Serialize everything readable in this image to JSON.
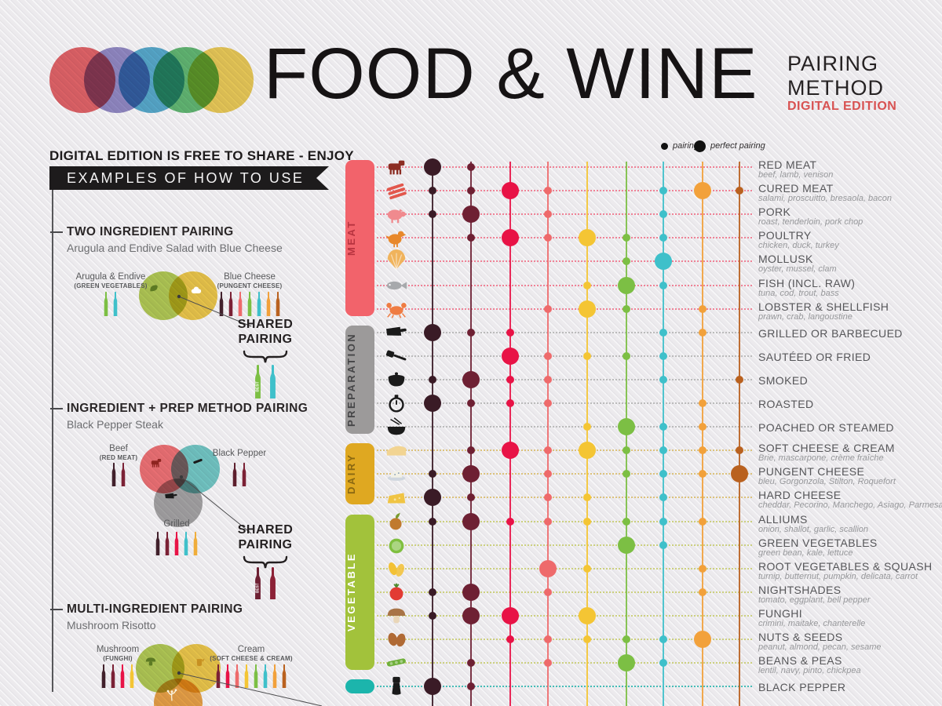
{
  "header": {
    "title": "FOOD & WINE",
    "subtitle_line1": "PAIRING",
    "subtitle_line2": "METHOD",
    "edition": "DIGITAL EDITION",
    "edition_color": "#d85252",
    "logo_colors": [
      "#e04a4f",
      "#8178bc",
      "#3a9dc6",
      "#47ae5b",
      "#e9c43c"
    ]
  },
  "share_note": "DIGITAL EDITION IS FREE TO SHARE - ENJOY",
  "banner": "EXAMPLES OF HOW TO USE",
  "legend": {
    "pairing_label": "pairing",
    "perfect_label": "perfect pairing"
  },
  "examples": [
    {
      "heading": "TWO INGREDIENT PAIRING",
      "subtitle": "Arugula and Endive Salad with Blue Cheese",
      "ingredients": [
        {
          "name": "Arugula & Endive",
          "category": "(GREEN VEGETABLES)",
          "bottles": [
            "#7cbf44",
            "#3fc0ca"
          ]
        },
        {
          "name": "Blue Cheese",
          "category": "(PUNGENT CHEESE)",
          "bottles": [
            "#41202b",
            "#7b2135",
            "#ee6a6b",
            "#7cbf44",
            "#3fc0ca",
            "#f2a13b",
            "#b9611f"
          ]
        }
      ],
      "venn": [
        {
          "color": "#a9c53e",
          "icon": "arugula-icon",
          "icon_color": "#5c7a23"
        },
        {
          "color": "#ecc333",
          "icon": "cloud-icon",
          "icon_color": "#ffffff"
        }
      ],
      "shared_label_line1": "SHARED",
      "shared_label_line2": "PAIRING",
      "shared_bottles": [
        {
          "color": "#7cbf44",
          "tag": "BEST"
        },
        {
          "color": "#3fc0ca",
          "tag": ""
        }
      ]
    },
    {
      "heading": "INGREDIENT + PREP METHOD PAIRING",
      "subtitle": "Black Pepper Steak",
      "ingredients": [
        {
          "name": "Beef",
          "category": "(RED MEAT)",
          "bottles": [
            "#41202b",
            "#7b2135"
          ]
        },
        {
          "name": "Black Pepper",
          "category": "",
          "bottles": [
            "#5d1f2d",
            "#7b2135"
          ]
        },
        {
          "name": "Grilled",
          "category": "",
          "bottles": [
            "#41202b",
            "#7b2135",
            "#e81346",
            "#3fc0ca",
            "#f0ad3a"
          ]
        }
      ],
      "venn": [
        {
          "color": "#ef5f63",
          "icon": "cow-icon",
          "icon_color": "#8e2420"
        },
        {
          "color": "#62c4bf",
          "icon": "pepper-strip-icon",
          "icon_color": "#1a1a1a"
        },
        {
          "color": "#9a9a9a",
          "icon": "cleaver-icon",
          "icon_color": "#1a1a1a"
        }
      ],
      "shared_label_line1": "SHARED",
      "shared_label_line2": "PAIRING",
      "shared_bottles": [
        {
          "color": "#6e2033",
          "tag": "BEST"
        },
        {
          "color": "#8c2136",
          "tag": ""
        }
      ]
    },
    {
      "heading": "MULTI-INGREDIENT PAIRING",
      "subtitle": "Mushroom Risotto",
      "ingredients": [
        {
          "name": "Mushroom",
          "category": "(FUNGHI)",
          "bottles": [
            "#41202b",
            "#7b2135",
            "#e81346",
            "#f4c534"
          ]
        },
        {
          "name": "Cream",
          "category": "(SOFT CHEESE & CREAM)",
          "bottles": [
            "#7b2135",
            "#e81346",
            "#ee6a6b",
            "#f4c534",
            "#7cbf44",
            "#3fc0ca",
            "#f2a13b",
            "#b9611f"
          ]
        }
      ],
      "venn": [
        {
          "color": "#a9c53e",
          "icon": "mushroom-venn-icon",
          "icon_color": "#5c7a23"
        },
        {
          "color": "#ecc333",
          "icon": "pitcher-icon",
          "icon_color": "#c79021"
        },
        {
          "color": "#e8962e",
          "icon": "rice-icon",
          "icon_color": "#faf3df"
        }
      ],
      "shared_label_line1": "",
      "shared_label_line2": "",
      "shared_bottles": []
    }
  ],
  "chart_data": {
    "type": "heatmap",
    "value_legend": {
      "1": "pairing",
      "2": "perfect pairing"
    },
    "wine_columns": [
      "#3a1b26",
      "#6e2033",
      "#e81346",
      "#ee6a6b",
      "#f4c534",
      "#7cbf44",
      "#3fc0ca",
      "#f2a13b",
      "#b9611f"
    ],
    "categories": [
      {
        "label": "MEAT",
        "color": "#f2636b",
        "text_color": "#b7333f",
        "line_color": "#ef8296",
        "row_start": 0,
        "row_end": 6
      },
      {
        "label": "PREPARATION",
        "color": "#9c9a9a",
        "text_color": "#454547",
        "line_color": "#bbbbbb",
        "row_start": 7,
        "row_end": 11
      },
      {
        "label": "DAIRY",
        "color": "#dfa821",
        "text_color": "#8a6812",
        "line_color": "#dcc27c",
        "row_start": 12,
        "row_end": 14
      },
      {
        "label": "VEGETABLE",
        "color": "#a2c23b",
        "text_color": "#ffffff",
        "line_color": "#ccd07f",
        "row_start": 15,
        "row_end": 21
      },
      {
        "label": "",
        "color": "#1cb5ac",
        "text_color": "#ffffff",
        "line_color": "#45bdb7",
        "row_start": 22,
        "row_end": 22
      }
    ],
    "rows": [
      {
        "label": "RED MEAT",
        "sub": "beef, lamb, venison",
        "icon": "cow-icon",
        "icon_color": "#8c2d23",
        "cells": [
          2,
          1,
          0,
          0,
          0,
          0,
          0,
          0,
          0
        ]
      },
      {
        "label": "CURED MEAT",
        "sub": "salami, proscuitto, bresaola, bacon",
        "icon": "bacon-icon",
        "icon_color": "#e2574c",
        "cells": [
          1,
          1,
          2,
          1,
          0,
          0,
          1,
          2,
          1
        ]
      },
      {
        "label": "PORK",
        "sub": "roast, tenderloin, pork chop",
        "icon": "pig-icon",
        "icon_color": "#f08a8e",
        "cells": [
          1,
          2,
          0,
          1,
          0,
          0,
          1,
          0,
          0
        ]
      },
      {
        "label": "POULTRY",
        "sub": "chicken, duck, turkey",
        "icon": "chicken-icon",
        "icon_color": "#e8882b",
        "cells": [
          0,
          1,
          2,
          1,
          2,
          1,
          1,
          0,
          0
        ]
      },
      {
        "label": "MOLLUSK",
        "sub": "oyster, mussel, clam",
        "icon": "scallop-icon",
        "icon_color": "#f0b35c",
        "cells": [
          0,
          0,
          0,
          0,
          0,
          1,
          2,
          0,
          0
        ]
      },
      {
        "label": "FISH (INCL. RAW)",
        "sub": "tuna, cod, trout, bass",
        "icon": "fish-icon",
        "icon_color": "#a7a9ac",
        "cells": [
          0,
          0,
          0,
          0,
          1,
          2,
          1,
          0,
          0
        ]
      },
      {
        "label": "LOBSTER & SHELLFISH",
        "sub": "prawn, crab, langoustine",
        "icon": "crab-icon",
        "icon_color": "#ef7c43",
        "cells": [
          0,
          0,
          0,
          1,
          2,
          1,
          0,
          1,
          0
        ]
      },
      {
        "label": "GRILLED OR BARBECUED",
        "sub": "",
        "icon": "cleaver-icon",
        "icon_color": "#1a1a1a",
        "cells": [
          2,
          1,
          1,
          0,
          0,
          0,
          1,
          1,
          0
        ]
      },
      {
        "label": "SAUTÉED OR FRIED",
        "sub": "",
        "icon": "spatula-icon",
        "icon_color": "#1a1a1a",
        "cells": [
          0,
          0,
          2,
          1,
          1,
          1,
          1,
          0,
          0
        ]
      },
      {
        "label": "SMOKED",
        "sub": "",
        "icon": "pot-icon",
        "icon_color": "#1a1a1a",
        "cells": [
          1,
          2,
          1,
          1,
          0,
          0,
          1,
          0,
          1
        ]
      },
      {
        "label": "ROASTED",
        "sub": "",
        "icon": "timer-icon",
        "icon_color": "#1a1a1a",
        "cells": [
          2,
          1,
          1,
          1,
          0,
          0,
          0,
          1,
          0
        ]
      },
      {
        "label": "POACHED OR STEAMED",
        "sub": "",
        "icon": "bowl-icon",
        "icon_color": "#1a1a1a",
        "cells": [
          0,
          0,
          0,
          0,
          1,
          2,
          1,
          1,
          0
        ]
      },
      {
        "label": "SOFT CHEESE & CREAM",
        "sub": "Brie, mascarpone, crème fraîche",
        "icon": "soft-cheese-icon",
        "icon_color": "#f2d492",
        "cells": [
          0,
          1,
          2,
          1,
          2,
          1,
          1,
          1,
          1
        ]
      },
      {
        "label": "PUNGENT CHEESE",
        "sub": "bleu, Gorgonzola, Stilton, Roquefort",
        "icon": "blue-cheese-icon",
        "icon_color": "#cfd6de",
        "cells": [
          1,
          2,
          0,
          1,
          0,
          1,
          1,
          1,
          2
        ]
      },
      {
        "label": "HARD CHEESE",
        "sub": "cheddar, Pecorino, Manchego, Asiago, Parmesan",
        "icon": "hard-cheese-icon",
        "icon_color": "#f0c443",
        "cells": [
          2,
          1,
          0,
          1,
          1,
          0,
          1,
          0,
          0
        ]
      },
      {
        "label": "ALLIUMS",
        "sub": "onion, shallot, garlic, scallion",
        "icon": "onion-icon",
        "icon_color": "#c07a2e",
        "cells": [
          1,
          2,
          1,
          1,
          1,
          1,
          1,
          1,
          0
        ]
      },
      {
        "label": "GREEN VEGETABLES",
        "sub": "green bean, kale, lettuce",
        "icon": "cabbage-icon",
        "icon_color": "#7fbf3f",
        "cells": [
          0,
          0,
          0,
          0,
          0,
          2,
          1,
          0,
          0
        ]
      },
      {
        "label": "ROOT VEGETABLES & SQUASH",
        "sub": "turnip, butternut, pumpkin, delicata, carrot",
        "icon": "squash-icon",
        "icon_color": "#f3c135",
        "cells": [
          0,
          0,
          0,
          2,
          1,
          0,
          0,
          1,
          0
        ]
      },
      {
        "label": "NIGHTSHADES",
        "sub": "tomato, eggplant, bell pepper",
        "icon": "tomato-icon",
        "icon_color": "#e23b33",
        "cells": [
          1,
          2,
          0,
          1,
          0,
          0,
          0,
          1,
          0
        ]
      },
      {
        "label": "FUNGHI",
        "sub": "crimini, maitake, chanterelle",
        "icon": "mushroom-icon",
        "icon_color": "#a87447",
        "cells": [
          1,
          2,
          2,
          0,
          2,
          0,
          0,
          0,
          0
        ]
      },
      {
        "label": "NUTS & SEEDS",
        "sub": "peanut, almond, pecan, sesame",
        "icon": "pecan-icon",
        "icon_color": "#b06a35",
        "cells": [
          0,
          0,
          1,
          1,
          1,
          1,
          1,
          2,
          0
        ]
      },
      {
        "label": "BEANS & PEAS",
        "sub": "lentil, navy, pinto, chickpea",
        "icon": "peapod-icon",
        "icon_color": "#6faf3a",
        "cells": [
          0,
          1,
          0,
          1,
          0,
          2,
          1,
          0,
          0
        ]
      },
      {
        "label": "BLACK PEPPER",
        "sub": "",
        "icon": "grinder-icon",
        "icon_color": "#1a1a1a",
        "cells": [
          2,
          1,
          0,
          0,
          0,
          0,
          0,
          0,
          0
        ]
      }
    ]
  }
}
